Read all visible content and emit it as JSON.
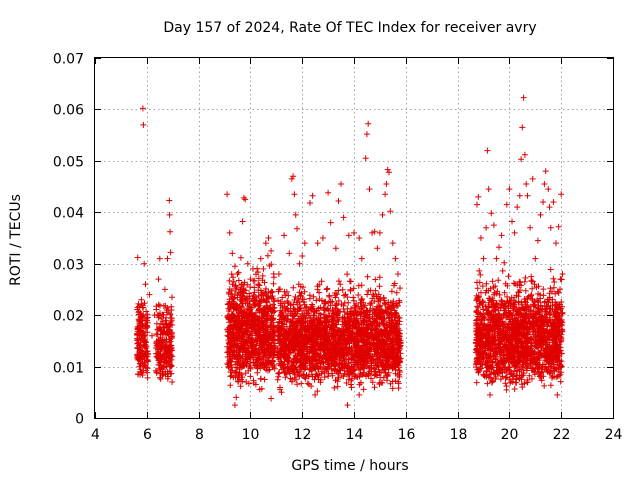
{
  "chart_data": {
    "type": "scatter",
    "title": "Day 157 of 2024, Rate Of TEC Index for receiver avry",
    "xlabel": "GPS time / hours",
    "ylabel": "ROTI / TECUs",
    "xlim": [
      4,
      24
    ],
    "ylim": [
      0,
      0.07
    ],
    "xticks": [
      4,
      6,
      8,
      10,
      12,
      14,
      16,
      18,
      20,
      22,
      24
    ],
    "yticks": [
      0,
      0.01,
      0.02,
      0.03,
      0.04,
      0.05,
      0.06,
      0.07
    ],
    "ytick_labels": [
      "0",
      "0.01",
      "0.02",
      "0.03",
      "0.04",
      "0.05",
      "0.06",
      "0.07"
    ],
    "grid": true,
    "marker": "+",
    "marker_color": "#e00000",
    "series": [
      {
        "name": "ROTI",
        "points": [
          [
            5.65,
            0.0312
          ],
          [
            5.7,
            0.014
          ],
          [
            5.75,
            0.009
          ],
          [
            5.8,
            0.022
          ],
          [
            5.85,
            0.0602
          ],
          [
            5.87,
            0.057
          ],
          [
            5.9,
            0.03
          ],
          [
            5.95,
            0.026
          ],
          [
            6.0,
            0.018
          ],
          [
            6.05,
            0.011
          ],
          [
            6.1,
            0.024
          ],
          [
            6.2,
            0.016
          ],
          [
            6.3,
            0.02
          ],
          [
            6.45,
            0.027
          ],
          [
            6.5,
            0.031
          ],
          [
            6.6,
            0.015
          ],
          [
            6.7,
            0.025
          ],
          [
            6.8,
            0.031
          ],
          [
            6.87,
            0.0423
          ],
          [
            6.88,
            0.0395
          ],
          [
            6.9,
            0.0362
          ],
          [
            6.92,
            0.0322
          ],
          [
            6.95,
            0.021
          ],
          [
            6.98,
            0.012
          ],
          [
            9.1,
            0.0435
          ],
          [
            9.2,
            0.036
          ],
          [
            9.3,
            0.032
          ],
          [
            9.4,
            0.0295
          ],
          [
            9.5,
            0.028
          ],
          [
            9.6,
            0.025
          ],
          [
            9.7,
            0.0382
          ],
          [
            9.75,
            0.0428
          ],
          [
            9.8,
            0.0425
          ],
          [
            9.9,
            0.03
          ],
          [
            10.0,
            0.027
          ],
          [
            10.1,
            0.029
          ],
          [
            10.2,
            0.022
          ],
          [
            10.3,
            0.026
          ],
          [
            10.4,
            0.031
          ],
          [
            10.5,
            0.029
          ],
          [
            10.6,
            0.034
          ],
          [
            10.7,
            0.035
          ],
          [
            10.8,
            0.0325
          ],
          [
            10.9,
            0.028
          ],
          [
            9.4,
            0.0025
          ],
          [
            9.45,
            0.004
          ],
          [
            10.8,
            0.0038
          ],
          [
            11.1,
            0.028
          ],
          [
            11.3,
            0.0355
          ],
          [
            11.5,
            0.032
          ],
          [
            11.6,
            0.0465
          ],
          [
            11.65,
            0.047
          ],
          [
            11.7,
            0.0435
          ],
          [
            11.75,
            0.0395
          ],
          [
            11.8,
            0.0368
          ],
          [
            11.9,
            0.03
          ],
          [
            12.0,
            0.0315
          ],
          [
            12.1,
            0.034
          ],
          [
            12.3,
            0.0418
          ],
          [
            12.4,
            0.0432
          ],
          [
            12.6,
            0.034
          ],
          [
            12.8,
            0.035
          ],
          [
            13.0,
            0.0438
          ],
          [
            13.1,
            0.038
          ],
          [
            13.3,
            0.033
          ],
          [
            13.4,
            0.0422
          ],
          [
            13.5,
            0.0455
          ],
          [
            13.6,
            0.039
          ],
          [
            13.8,
            0.0355
          ],
          [
            14.0,
            0.036
          ],
          [
            14.2,
            0.035
          ],
          [
            14.3,
            0.031
          ],
          [
            14.45,
            0.0505
          ],
          [
            14.5,
            0.0552
          ],
          [
            14.55,
            0.0572
          ],
          [
            14.6,
            0.0445
          ],
          [
            14.7,
            0.036
          ],
          [
            14.8,
            0.0362
          ],
          [
            14.9,
            0.033
          ],
          [
            15.0,
            0.036
          ],
          [
            15.1,
            0.0395
          ],
          [
            15.2,
            0.0435
          ],
          [
            15.25,
            0.0455
          ],
          [
            15.3,
            0.0483
          ],
          [
            15.35,
            0.0478
          ],
          [
            15.4,
            0.0402
          ],
          [
            15.5,
            0.034
          ],
          [
            15.6,
            0.031
          ],
          [
            15.7,
            0.028
          ],
          [
            13.75,
            0.0025
          ],
          [
            12.5,
            0.0045
          ],
          [
            14.2,
            0.0045
          ],
          [
            11.2,
            0.005
          ],
          [
            18.75,
            0.0415
          ],
          [
            18.8,
            0.043
          ],
          [
            18.9,
            0.035
          ],
          [
            19.0,
            0.031
          ],
          [
            19.1,
            0.037
          ],
          [
            19.15,
            0.052
          ],
          [
            19.2,
            0.0445
          ],
          [
            19.3,
            0.0398
          ],
          [
            19.4,
            0.0375
          ],
          [
            19.5,
            0.031
          ],
          [
            19.6,
            0.0332
          ],
          [
            19.7,
            0.0355
          ],
          [
            19.8,
            0.0302
          ],
          [
            19.9,
            0.0415
          ],
          [
            20.0,
            0.0445
          ],
          [
            20.1,
            0.0382
          ],
          [
            20.2,
            0.036
          ],
          [
            20.3,
            0.041
          ],
          [
            20.4,
            0.0432
          ],
          [
            20.45,
            0.0503
          ],
          [
            20.5,
            0.0565
          ],
          [
            20.55,
            0.0623
          ],
          [
            20.6,
            0.0512
          ],
          [
            20.65,
            0.0455
          ],
          [
            20.7,
            0.0432
          ],
          [
            20.8,
            0.037
          ],
          [
            20.9,
            0.0465
          ],
          [
            21.0,
            0.031
          ],
          [
            21.1,
            0.0345
          ],
          [
            21.2,
            0.0395
          ],
          [
            21.3,
            0.042
          ],
          [
            21.35,
            0.0455
          ],
          [
            21.4,
            0.048
          ],
          [
            21.5,
            0.0445
          ],
          [
            21.55,
            0.041
          ],
          [
            21.6,
            0.037
          ],
          [
            21.7,
            0.042
          ],
          [
            21.8,
            0.034
          ],
          [
            21.9,
            0.0372
          ],
          [
            22.0,
            0.0435
          ],
          [
            22.05,
            0.028
          ],
          [
            19.25,
            0.0045
          ],
          [
            21.85,
            0.0045
          ],
          [
            20.5,
            0.006
          ]
        ],
        "bands": [
          {
            "x_start": 5.62,
            "x_end": 6.05,
            "y_low": 0.006,
            "y_high": 0.025,
            "count": 170
          },
          {
            "x_start": 6.35,
            "x_end": 6.98,
            "y_low": 0.006,
            "y_high": 0.024,
            "count": 220
          },
          {
            "x_start": 9.1,
            "x_end": 10.95,
            "y_low": 0.005,
            "y_high": 0.03,
            "count": 950
          },
          {
            "x_start": 11.05,
            "x_end": 15.8,
            "y_low": 0.005,
            "y_high": 0.027,
            "count": 2300
          },
          {
            "x_start": 18.7,
            "x_end": 22.05,
            "y_low": 0.005,
            "y_high": 0.028,
            "count": 1700
          }
        ]
      }
    ]
  }
}
